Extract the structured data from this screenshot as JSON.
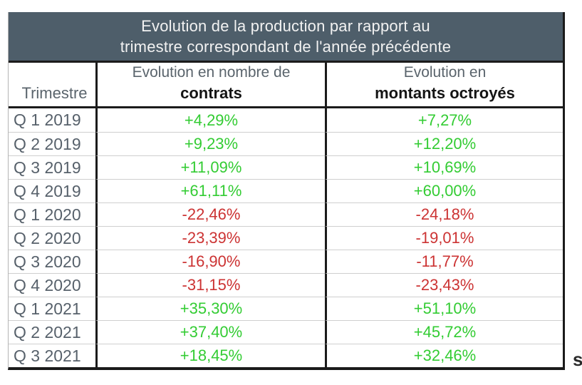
{
  "title": {
    "line1": "Evolution de la production par rapport au",
    "line2": "trimestre correspondant de l'année précédente"
  },
  "columns": {
    "trimestre": "Trimestre",
    "contrats_sub": "Evolution en nombre de",
    "contrats_main": "contrats",
    "montants_sub": "Evolution en",
    "montants_main": "montants octroyés"
  },
  "rows": [
    {
      "trimestre": "Q 1 2019",
      "contrats": "+4,29%",
      "montants": "+7,27%",
      "trend": "up"
    },
    {
      "trimestre": "Q 2 2019",
      "contrats": "+9,23%",
      "montants": "+12,20%",
      "trend": "up"
    },
    {
      "trimestre": "Q 3 2019",
      "contrats": "+11,09%",
      "montants": "+10,69%",
      "trend": "up"
    },
    {
      "trimestre": "Q 4 2019",
      "contrats": "+61,11%",
      "montants": "+60,00%",
      "trend": "up"
    },
    {
      "trimestre": "Q 1 2020",
      "contrats": "-22,46%",
      "montants": "-24,18%",
      "trend": "down"
    },
    {
      "trimestre": "Q 2 2020",
      "contrats": "-23,39%",
      "montants": "-19,01%",
      "trend": "down"
    },
    {
      "trimestre": "Q 3 2020",
      "contrats": "-16,90%",
      "montants": "-11,77%",
      "trend": "down"
    },
    {
      "trimestre": "Q 4 2020",
      "contrats": "-31,15%",
      "montants": "-23,43%",
      "trend": "down"
    },
    {
      "trimestre": "Q 1 2021",
      "contrats": "+35,30%",
      "montants": "+51,10%",
      "trend": "up"
    },
    {
      "trimestre": "Q 2 2021",
      "contrats": "+37,40%",
      "montants": "+45,72%",
      "trend": "up"
    },
    {
      "trimestre": "Q 3 2021",
      "contrats": "+18,45%",
      "montants": "+32,46%",
      "trend": "up"
    }
  ],
  "artifact_fragment": "s",
  "colors": {
    "title_band_bg": "#4e5e6a",
    "title_band_text": "#f2f2f2",
    "positive_green": "#33cc33",
    "negative_red": "#cc3333",
    "header_gray": "#5a646c",
    "row_label_gray": "#57616b",
    "grid_dark_line": "#1b1b1b",
    "grid_light_line": "#cfcfcf"
  },
  "chart_data": {
    "type": "table",
    "title": "Evolution de la production par rapport au trimestre correspondant de l'année précédente",
    "columns": [
      "Trimestre",
      "Evolution en nombre de contrats",
      "Evolution en montants octroyés"
    ],
    "categories": [
      "Q 1 2019",
      "Q 2 2019",
      "Q 3 2019",
      "Q 4 2019",
      "Q 1 2020",
      "Q 2 2020",
      "Q 3 2020",
      "Q 4 2020",
      "Q 1 2021",
      "Q 2 2021",
      "Q 3 2021"
    ],
    "series": [
      {
        "name": "Evolution en nombre de contrats (%)",
        "values": [
          4.29,
          9.23,
          11.09,
          61.11,
          -22.46,
          -23.39,
          -16.9,
          -31.15,
          35.3,
          37.4,
          18.45
        ]
      },
      {
        "name": "Evolution en montants octroyés (%)",
        "values": [
          7.27,
          12.2,
          10.69,
          60.0,
          -24.18,
          -19.01,
          -11.77,
          -23.43,
          51.1,
          45.72,
          32.46
        ]
      }
    ],
    "value_format": "signed percent, French decimal comma",
    "positive_color": "#33cc33",
    "negative_color": "#cc3333"
  }
}
